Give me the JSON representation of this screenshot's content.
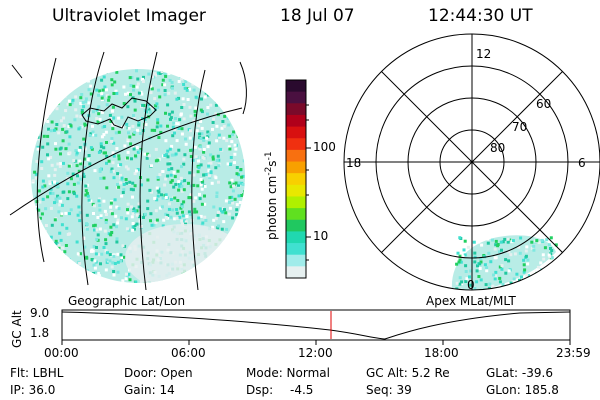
{
  "header": {
    "instrument": "Ultraviolet Imager",
    "date": "18 Jul 07",
    "time": "12:44:30 UT"
  },
  "colorbar": {
    "unit_label": "photon cm",
    "unit_sup1": "-2",
    "unit_mid": "s",
    "unit_sup2": "-1",
    "ticks": [
      "100",
      "10"
    ],
    "colors": [
      "#2a0a2e",
      "#4a1040",
      "#7a0a2a",
      "#b0001a",
      "#d81010",
      "#f03010",
      "#f87010",
      "#f8a000",
      "#f8d000",
      "#e8e800",
      "#b0f000",
      "#60e020",
      "#20c860",
      "#20d8b0",
      "#40e0d0",
      "#a0ecea",
      "#e6f0f0"
    ]
  },
  "polar_plot": {
    "label_top": "12",
    "label_left": "18",
    "label_right": "6",
    "label_bottom": "0",
    "ring_labels": [
      "60",
      "70",
      "80"
    ]
  },
  "left_caption": "Geographic Lat/Lon",
  "right_caption": "Apex MLat/MLT",
  "altitude_plot": {
    "axis_label": "GC Alt",
    "y_max": "9.0",
    "y_min": "1.8",
    "x_ticks": [
      "00:00",
      "06:00",
      "12:00",
      "18:00",
      "23:59"
    ],
    "current_time_color": "#e00000"
  },
  "info": {
    "flt": "Flt: LBHL",
    "door": "Door: Open",
    "mode": "Mode: Normal",
    "gcalt": "GC Alt: 5.2 Re",
    "glat": "GLat: -39.6",
    "ip": "IP: 36.0",
    "gain": "Gain: 14",
    "dsp_label": "Dsp:",
    "dsp_value": "-4.5",
    "seq": "Seq: 39",
    "glon": "GLon: 185.8"
  }
}
